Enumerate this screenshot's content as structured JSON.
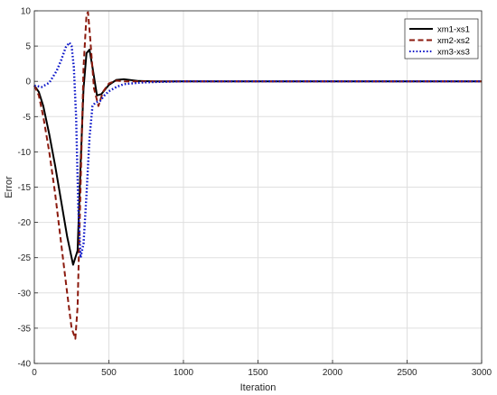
{
  "chart_data": {
    "type": "line",
    "title": "",
    "xlabel": "Iteration",
    "ylabel": "Error",
    "xlim": [
      0,
      3000
    ],
    "ylim": [
      -40,
      10
    ],
    "xticks": [
      0,
      500,
      1000,
      1500,
      2000,
      2500,
      3000
    ],
    "yticks": [
      10,
      5,
      0,
      -5,
      -10,
      -15,
      -20,
      -25,
      -30,
      -35,
      -40
    ],
    "grid": true,
    "legend_position": "top-right",
    "series": [
      {
        "name": "xm1-xs1",
        "color": "#000000",
        "style": "solid",
        "x": [
          0,
          30,
          60,
          100,
          140,
          180,
          220,
          260,
          290,
          310,
          330,
          350,
          370,
          390,
          420,
          450,
          500,
          550,
          600,
          700,
          800,
          3000
        ],
        "y": [
          -0.6,
          -1.5,
          -3.5,
          -7.5,
          -12,
          -17,
          -22,
          -26,
          -24,
          -12,
          -1,
          4,
          4.5,
          2,
          -2,
          -1.8,
          -0.5,
          0.2,
          0.3,
          0.05,
          0,
          0
        ]
      },
      {
        "name": "xm2-xs2",
        "color": "#8b1a0e",
        "style": "dashed",
        "x": [
          0,
          30,
          60,
          100,
          140,
          180,
          220,
          250,
          275,
          290,
          310,
          330,
          350,
          360,
          375,
          400,
          430,
          460,
          500,
          550,
          600,
          700,
          3000
        ],
        "y": [
          -0.6,
          -2,
          -5,
          -10,
          -16,
          -23,
          -30,
          -35,
          -36.5,
          -32,
          -15,
          2,
          9.5,
          9.8,
          6,
          -1,
          -3.5,
          -1.5,
          -0.3,
          0.1,
          0,
          0,
          0
        ]
      },
      {
        "name": "xm3-xs3",
        "color": "#0a14c8",
        "style": "dotted",
        "x": [
          0,
          50,
          100,
          150,
          180,
          210,
          235,
          250,
          265,
          280,
          295,
          310,
          330,
          350,
          370,
          390,
          410,
          440,
          470,
          500,
          550,
          600,
          700,
          800,
          900,
          1000,
          3000
        ],
        "y": [
          -0.6,
          -0.8,
          -0.2,
          1.5,
          3,
          4.8,
          5.5,
          5,
          2,
          -5,
          -18,
          -25,
          -23,
          -16,
          -8,
          -3.5,
          -3,
          -2.8,
          -2,
          -1.4,
          -0.8,
          -0.4,
          -0.2,
          -0.1,
          -0.05,
          0,
          0
        ]
      }
    ]
  }
}
